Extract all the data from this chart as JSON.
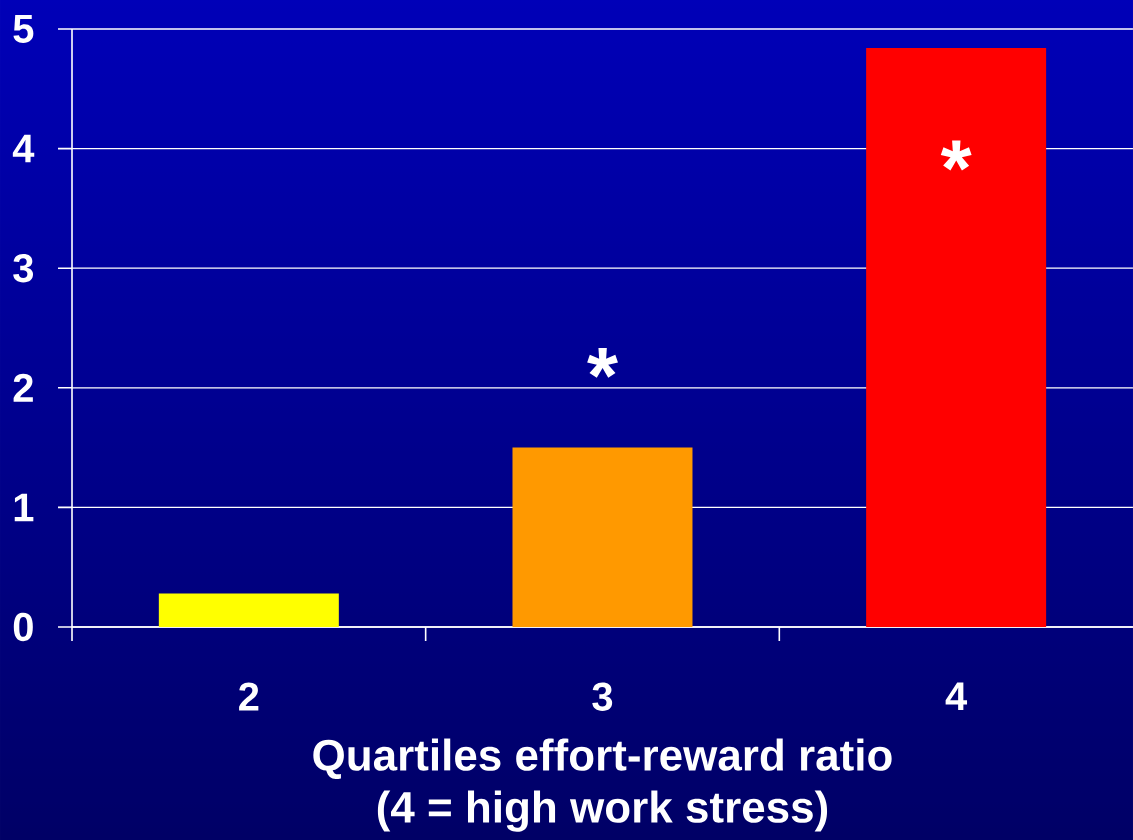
{
  "chart_data": {
    "type": "bar",
    "categories": [
      "2",
      "3",
      "4"
    ],
    "values": [
      0.28,
      1.5,
      4.84
    ],
    "colors": [
      "#ffff00",
      "#ff9900",
      "#ff0000"
    ],
    "value_labels": [
      null,
      "*",
      "*"
    ],
    "xlabel": "Quartiles effort-reward ratio (4 = high work stress)",
    "ylim": [
      0,
      5
    ],
    "yticks": [
      0,
      1,
      2,
      3,
      4,
      5
    ],
    "grid": "y"
  }
}
